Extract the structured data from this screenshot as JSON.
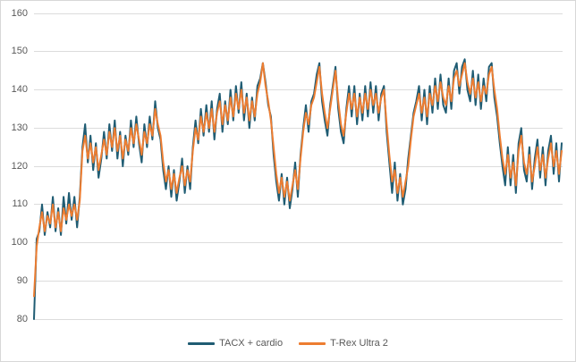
{
  "chart": {
    "title": "",
    "y_axis_tick_color": "#595959",
    "gridline_color": "#DCDCDC",
    "border_color": "#D7D7D7",
    "legend_position": "bottom-center"
  },
  "chart_data": {
    "type": "line",
    "title": "",
    "xlabel": "",
    "ylabel": "",
    "ylim": [
      80,
      160
    ],
    "y_ticks": [
      160,
      150,
      140,
      130,
      120,
      110,
      100,
      90,
      80
    ],
    "x_axis_labels_visible": false,
    "grid": "horizontal",
    "legend_position": "bottom",
    "series": [
      {
        "name": "TACX + cardio",
        "color": "#1F5C73",
        "values": [
          80,
          101,
          103,
          110,
          102,
          108,
          104,
          112,
          103,
          109,
          102,
          112,
          105,
          113,
          106,
          112,
          104,
          112,
          125,
          131,
          121,
          128,
          119,
          126,
          117,
          122,
          129,
          122,
          131,
          124,
          132,
          122,
          129,
          120,
          128,
          123,
          132,
          125,
          133,
          126,
          121,
          131,
          125,
          133,
          127,
          137,
          130,
          127,
          119,
          114,
          120,
          112,
          119,
          111,
          116,
          122,
          113,
          120,
          114,
          125,
          132,
          126,
          135,
          128,
          136,
          129,
          137,
          127,
          135,
          139,
          129,
          137,
          131,
          140,
          132,
          141,
          134,
          142,
          132,
          139,
          130,
          138,
          132,
          141,
          143,
          147,
          142,
          136,
          133,
          123,
          116,
          111,
          118,
          110,
          117,
          109,
          114,
          121,
          112,
          123,
          130,
          136,
          129,
          137,
          139,
          144,
          147,
          137,
          132,
          128,
          136,
          141,
          146,
          135,
          129,
          126,
          135,
          141,
          133,
          141,
          131,
          139,
          132,
          141,
          133,
          142,
          134,
          141,
          132,
          139,
          141,
          129,
          121,
          113,
          121,
          111,
          118,
          110,
          114,
          122,
          128,
          134,
          137,
          141,
          132,
          140,
          131,
          141,
          134,
          143,
          135,
          144,
          136,
          134,
          143,
          135,
          145,
          147,
          139,
          146,
          148,
          140,
          137,
          145,
          136,
          144,
          135,
          143,
          137,
          146,
          147,
          138,
          133,
          126,
          120,
          115,
          125,
          115,
          123,
          113,
          126,
          130,
          119,
          116,
          125,
          114,
          122,
          127,
          117,
          125,
          115,
          124,
          128,
          118,
          126,
          116,
          126
        ]
      },
      {
        "name": "T-Rex Ultra 2",
        "color": "#ED7D31",
        "values": [
          86,
          99,
          104,
          108,
          103,
          107,
          105,
          110,
          104,
          108,
          103,
          109,
          106,
          110,
          107,
          110,
          106,
          111,
          124,
          128,
          122,
          126,
          121,
          125,
          119,
          123,
          127,
          123,
          129,
          125,
          130,
          124,
          128,
          122,
          127,
          124,
          130,
          126,
          131,
          127,
          123,
          129,
          126,
          131,
          128,
          135,
          131,
          128,
          121,
          116,
          119,
          114,
          118,
          113,
          117,
          120,
          115,
          119,
          116,
          124,
          130,
          127,
          133,
          129,
          134,
          130,
          135,
          129,
          134,
          137,
          131,
          136,
          132,
          138,
          133,
          139,
          135,
          140,
          134,
          138,
          132,
          137,
          133,
          139,
          142,
          147,
          141,
          137,
          132,
          125,
          118,
          113,
          117,
          112,
          116,
          111,
          115,
          119,
          114,
          122,
          129,
          134,
          131,
          136,
          138,
          142,
          146,
          139,
          134,
          130,
          135,
          140,
          145,
          137,
          131,
          128,
          134,
          139,
          135,
          139,
          133,
          138,
          134,
          139,
          135,
          140,
          136,
          139,
          134,
          138,
          140,
          131,
          123,
          116,
          119,
          113,
          117,
          112,
          116,
          120,
          127,
          133,
          136,
          139,
          134,
          138,
          133,
          139,
          136,
          141,
          137,
          142,
          138,
          136,
          141,
          137,
          143,
          145,
          141,
          144,
          147,
          142,
          139,
          143,
          138,
          142,
          137,
          141,
          139,
          144,
          146,
          140,
          135,
          128,
          122,
          118,
          123,
          117,
          121,
          115,
          124,
          128,
          121,
          118,
          123,
          116,
          120,
          125,
          119,
          123,
          117,
          122,
          126,
          120,
          124,
          118,
          124
        ]
      }
    ]
  }
}
